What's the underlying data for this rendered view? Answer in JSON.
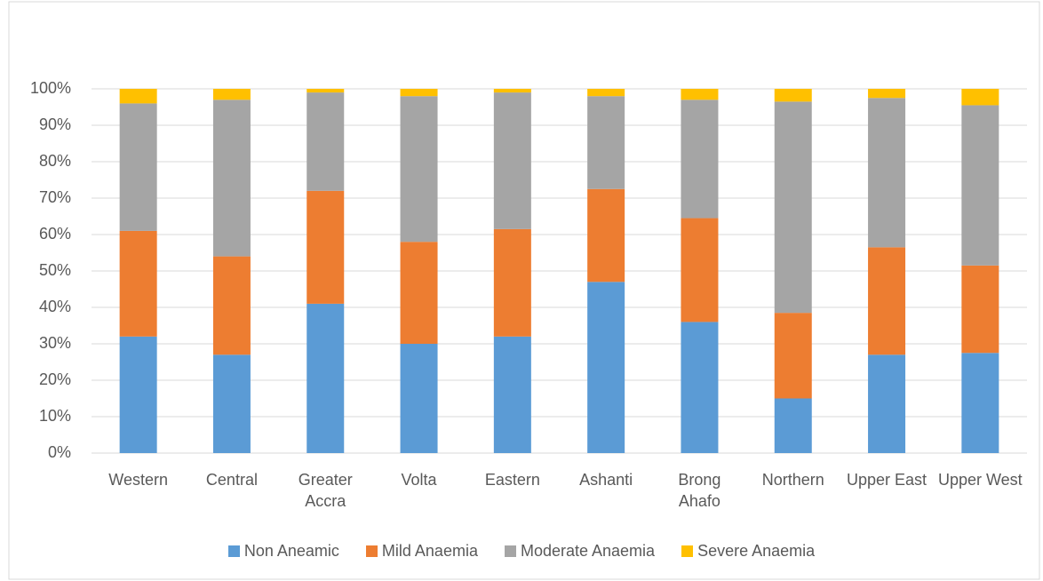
{
  "chart_data": {
    "type": "stacked_bar_percent",
    "categories": [
      "Western",
      "Central",
      "Greater Accra",
      "Volta",
      "Eastern",
      "Ashanti",
      "Brong Ahafo",
      "Northern",
      "Upper East",
      "Upper West"
    ],
    "series": [
      {
        "name": "Non Aneamic",
        "color": "#5b9bd5",
        "values": [
          32,
          27,
          41,
          30,
          32,
          47,
          36,
          15,
          27,
          27.5
        ]
      },
      {
        "name": "Mild Anaemia",
        "color": "#ed7d31",
        "values": [
          29,
          27,
          31,
          28,
          29.5,
          25.5,
          28.5,
          23.5,
          29.5,
          24
        ]
      },
      {
        "name": "Moderate Anaemia",
        "color": "#a5a5a5",
        "values": [
          35,
          43,
          27,
          40,
          37.5,
          25.5,
          32.5,
          58,
          41,
          44
        ]
      },
      {
        "name": "Severe Anaemia",
        "color": "#ffc000",
        "values": [
          4,
          3,
          1,
          2,
          1,
          2,
          3,
          3.5,
          2.5,
          4.5
        ]
      }
    ],
    "ylim": [
      0,
      100
    ],
    "yticks": [
      {
        "value": 0,
        "label": "0%"
      },
      {
        "value": 10,
        "label": "10%"
      },
      {
        "value": 20,
        "label": "20%"
      },
      {
        "value": 30,
        "label": "30%"
      },
      {
        "value": 40,
        "label": "40%"
      },
      {
        "value": 50,
        "label": "50%"
      },
      {
        "value": 60,
        "label": "60%"
      },
      {
        "value": 70,
        "label": "70%"
      },
      {
        "value": 80,
        "label": "80%"
      },
      {
        "value": 90,
        "label": "90%"
      },
      {
        "value": 100,
        "label": "100%"
      }
    ],
    "grid": true
  }
}
